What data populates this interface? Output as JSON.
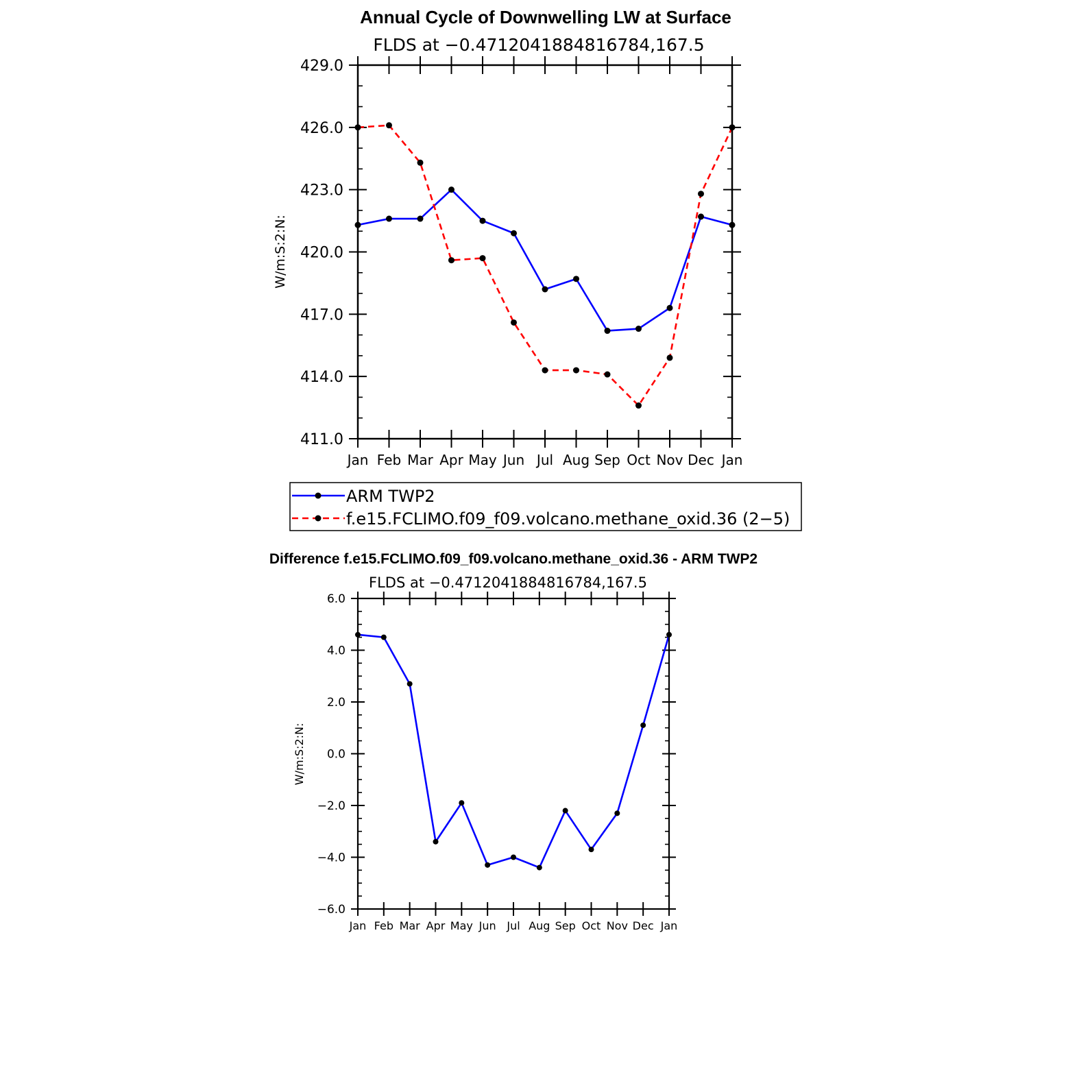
{
  "chart_data": [
    {
      "type": "line",
      "title": "Annual Cycle of Downwelling LW at Surface",
      "subtitle": "FLDS at −0.4712041884816784,167.5",
      "ylabel": "W/m:S:2:N:",
      "xlabel": "",
      "categories": [
        "Jan",
        "Feb",
        "Mar",
        "Apr",
        "May",
        "Jun",
        "Jul",
        "Aug",
        "Sep",
        "Oct",
        "Nov",
        "Dec",
        "Jan"
      ],
      "ylim": [
        411.0,
        429.0
      ],
      "yticks": [
        411.0,
        414.0,
        417.0,
        420.0,
        423.0,
        426.0,
        429.0
      ],
      "ytick_labels": [
        "411.0",
        "414.0",
        "417.0",
        "420.0",
        "423.0",
        "426.0",
        "429.0"
      ],
      "grid": false,
      "legend_position": "bottom",
      "series": [
        {
          "name": "ARM TWP2",
          "color": "#0000ff",
          "dash": "solid",
          "values": [
            421.3,
            421.6,
            421.6,
            423.0,
            421.5,
            420.9,
            418.2,
            418.7,
            416.2,
            416.3,
            417.3,
            421.7,
            421.3
          ]
        },
        {
          "name": "f.e15.FCLIMO.f09_f09.volcano.methane_oxid.36 (2−5)",
          "color": "#ff0000",
          "dash": "dashed",
          "values": [
            426.0,
            426.1,
            424.3,
            419.6,
            419.7,
            416.6,
            414.3,
            414.3,
            414.1,
            412.6,
            414.9,
            422.8,
            426.0
          ]
        }
      ]
    },
    {
      "type": "line",
      "title": "Difference f.e15.FCLIMO.f09_f09.volcano.methane_oxid.36 - ARM TWP2",
      "subtitle": "FLDS at −0.4712041884816784,167.5",
      "ylabel": "W/m:S:2:N:",
      "xlabel": "",
      "categories": [
        "Jan",
        "Feb",
        "Mar",
        "Apr",
        "May",
        "Jun",
        "Jul",
        "Aug",
        "Sep",
        "Oct",
        "Nov",
        "Dec",
        "Jan"
      ],
      "ylim": [
        -6.0,
        6.0
      ],
      "yticks": [
        -6.0,
        -4.0,
        -2.0,
        0.0,
        2.0,
        4.0,
        6.0
      ],
      "ytick_labels": [
        "−6.0",
        "−4.0",
        "−2.0",
        "0.0",
        "2.0",
        "4.0",
        "6.0"
      ],
      "grid": false,
      "series": [
        {
          "name": "Difference",
          "color": "#0000ff",
          "dash": "solid",
          "values": [
            4.6,
            4.5,
            2.7,
            -3.4,
            -1.9,
            -4.3,
            -4.0,
            -4.4,
            -2.2,
            -3.7,
            -2.3,
            1.1,
            4.6
          ]
        }
      ]
    }
  ]
}
